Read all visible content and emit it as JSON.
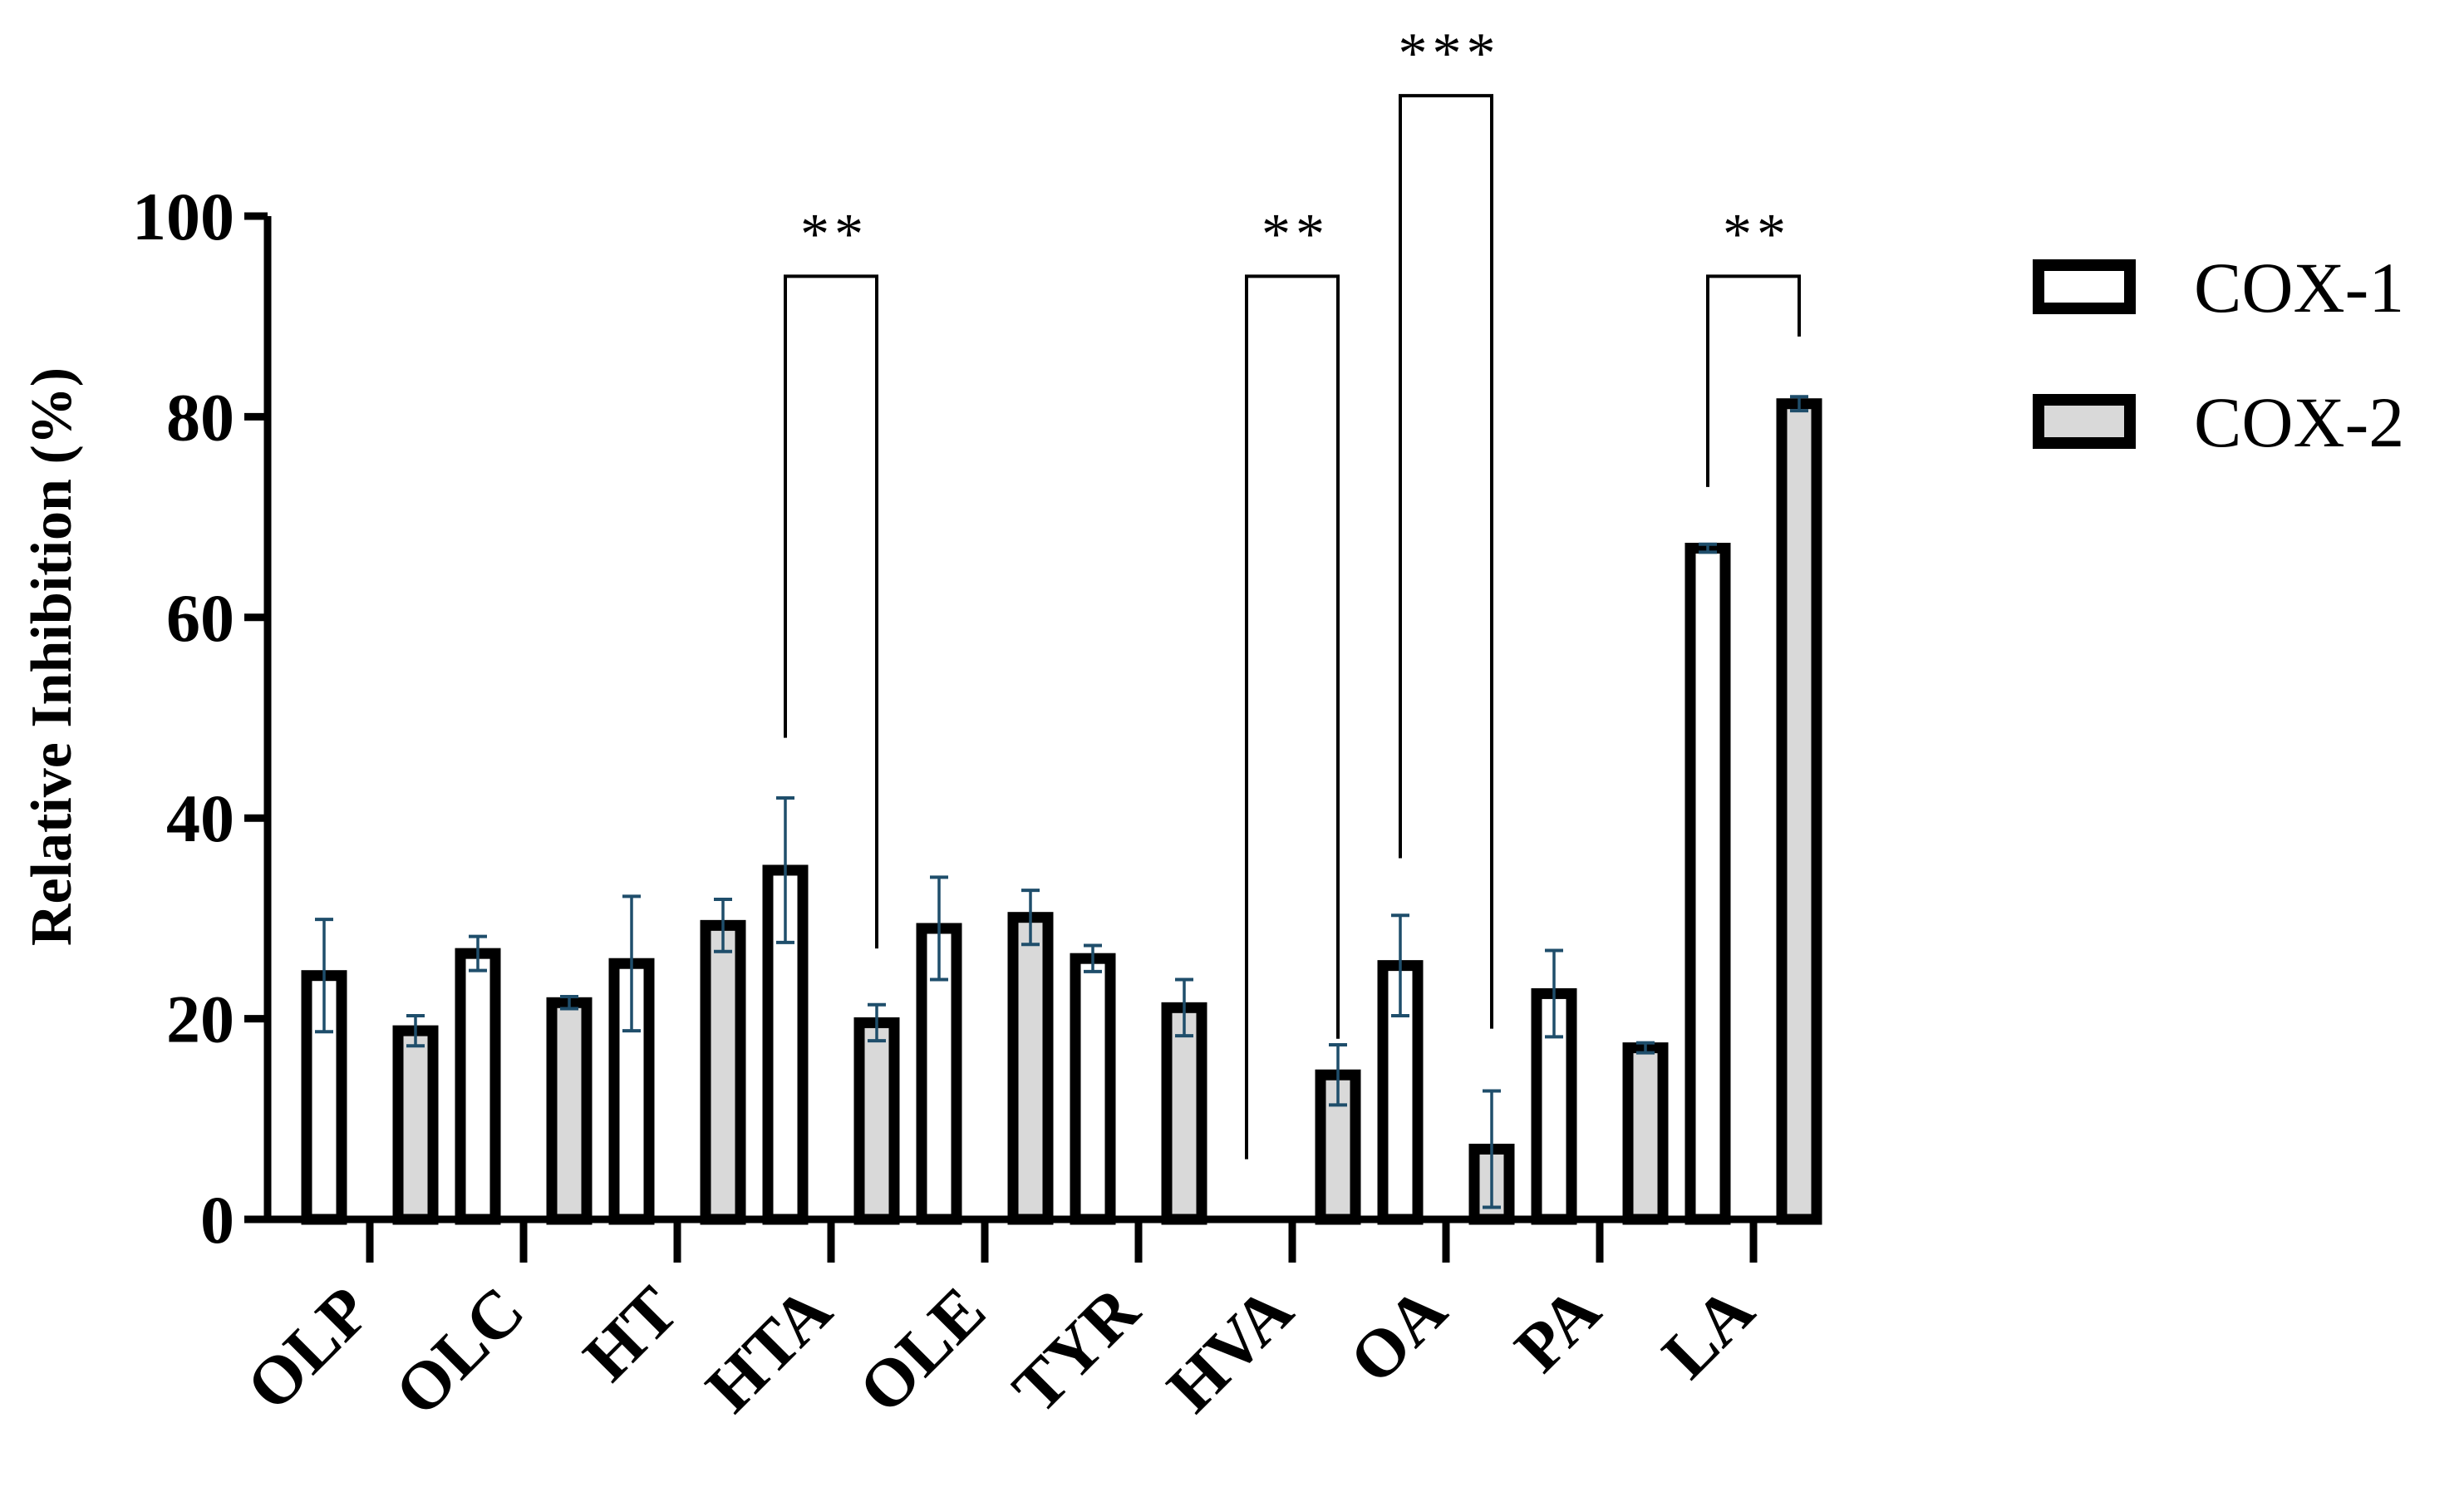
{
  "chart_data": {
    "type": "bar",
    "ylabel": "Relative Inhibition (%)",
    "xlabel": "",
    "ylim": [
      0,
      100
    ],
    "yticks": [
      0,
      20,
      40,
      60,
      80,
      100
    ],
    "categories": [
      "OLP",
      "OLC",
      "HT",
      "HTA",
      "OLE",
      "TYR",
      "HVA",
      "OA",
      "PA",
      "LA"
    ],
    "series": [
      {
        "name": "COX-1",
        "fill": "#ffffff",
        "values": [
          24.3,
          26.5,
          25.5,
          34.8,
          29.0,
          26.0,
          0,
          25.3,
          22.5,
          66.9
        ],
        "errors": [
          5.6,
          1.7,
          6.7,
          7.2,
          5.1,
          1.3,
          0,
          5.0,
          4.3,
          0.4
        ]
      },
      {
        "name": "COX-2",
        "fill": "#d9d9d9",
        "values": [
          18.8,
          21.6,
          29.3,
          19.6,
          30.1,
          21.1,
          14.4,
          7.0,
          17.1,
          81.3
        ],
        "errors": [
          1.5,
          0.6,
          2.6,
          1.8,
          2.7,
          2.8,
          3.0,
          5.8,
          0.5,
          0.7
        ]
      }
    ],
    "error_bar_color": "#1f4e6b",
    "significance": [
      {
        "category": "HTA",
        "label": "**",
        "bracket_top": 94,
        "left_end": 48,
        "right_end": 27
      },
      {
        "category": "HVA",
        "label": "**",
        "bracket_top": 94,
        "left_end": 6,
        "right_end": 18
      },
      {
        "category": "OA",
        "label": "***",
        "bracket_top": 112,
        "left_end": 36,
        "right_end": 19
      },
      {
        "category": "LA",
        "label": "**",
        "bracket_top": 94,
        "left_end": 73,
        "right_end": 88
      }
    ],
    "legend_position": "top-right",
    "grid": false
  }
}
